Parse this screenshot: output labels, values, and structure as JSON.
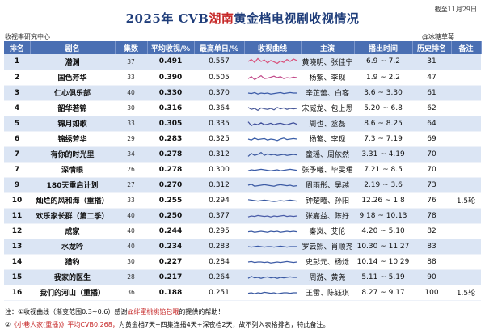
{
  "title": {
    "prefix": "2025年 CVB",
    "highlight": "湖南",
    "suffix": "黄金档电视剧收视情况"
  },
  "date_note": "截至11月29日",
  "source": "收视率研究中心",
  "author": "@冰糖草莓",
  "headers": [
    "排名",
    "剧名",
    "集数",
    "平均收视/%",
    "最高单日/%",
    "收视曲线",
    "主演",
    "播出时间",
    "历史排名",
    "备注"
  ],
  "rows": [
    {
      "rank": "1",
      "name": "潜渊",
      "episodes": "37",
      "avg": "0.491",
      "max": "0.557",
      "cast": "黄晓明、张佳宁",
      "time": "6.9 ~ 7.2",
      "hist": "31",
      "note": "",
      "curve": "curve-1"
    },
    {
      "rank": "2",
      "name": "国色芳华",
      "episodes": "33",
      "avg": "0.390",
      "max": "0.505",
      "cast": "杨紫、李现",
      "time": "1.9 ~ 2.2",
      "hist": "47",
      "note": "",
      "curve": "curve-2"
    },
    {
      "rank": "3",
      "name": "仁心俱乐部",
      "episodes": "40",
      "avg": "0.330",
      "max": "0.370",
      "cast": "辛芷蕾、白客",
      "time": "3.6 ~ 3.30",
      "hist": "61",
      "note": "",
      "curve": "curve-3"
    },
    {
      "rank": "4",
      "name": "韶华若锦",
      "episodes": "30",
      "avg": "0.316",
      "max": "0.364",
      "cast": "宋威龙、包上恩",
      "time": "5.20 ~ 6.8",
      "hist": "62",
      "note": "",
      "curve": "curve-4"
    },
    {
      "rank": "5",
      "name": "锦月如歌",
      "episodes": "33",
      "avg": "0.305",
      "max": "0.335",
      "cast": "周也、丞磊",
      "time": "8.6 ~ 8.25",
      "hist": "64",
      "note": "",
      "curve": "curve-5"
    },
    {
      "rank": "6",
      "name": "锦绣芳华",
      "episodes": "29",
      "avg": "0.283",
      "max": "0.325",
      "cast": "杨紫、李现",
      "time": "7.3 ~ 7.19",
      "hist": "69",
      "note": "",
      "curve": "curve-6"
    },
    {
      "rank": "7",
      "name": "有你的时光里",
      "episodes": "34",
      "avg": "0.278",
      "max": "0.312",
      "cast": "童瑶、周依然",
      "time": "3.31 ~ 4.19",
      "hist": "70",
      "note": "",
      "curve": "curve-7"
    },
    {
      "rank": "7",
      "name": "深情眼",
      "episodes": "26",
      "avg": "0.278",
      "max": "0.300",
      "cast": "张予曦、毕雯珺",
      "time": "7.21 ~ 8.5",
      "hist": "70",
      "note": "",
      "curve": "curve-8"
    },
    {
      "rank": "9",
      "name": "180天重启计划",
      "episodes": "27",
      "avg": "0.270",
      "max": "0.312",
      "cast": "周雨彤、吴越",
      "time": "2.19 ~ 3.6",
      "hist": "73",
      "note": "",
      "curve": "curve-9"
    },
    {
      "rank": "10",
      "name": "灿烂的风和海（重播）",
      "episodes": "33",
      "avg": "0.255",
      "max": "0.294",
      "cast": "钟楚曦、孙阳",
      "time": "12.26 ~ 1.8",
      "hist": "76",
      "note": "1.5轮",
      "curve": "curve-10"
    },
    {
      "rank": "11",
      "name": "欢乐家长群（第二季）",
      "episodes": "40",
      "avg": "0.250",
      "max": "0.377",
      "cast": "张嘉益、陈好",
      "time": "9.18 ~ 10.13",
      "hist": "78",
      "note": "",
      "curve": "curve-11"
    },
    {
      "rank": "12",
      "name": "成家",
      "episodes": "40",
      "avg": "0.244",
      "max": "0.295",
      "cast": "秦岚、艾伦",
      "time": "4.20 ~ 5.10",
      "hist": "82",
      "note": "",
      "curve": "curve-12"
    },
    {
      "rank": "13",
      "name": "水龙吟",
      "episodes": "40",
      "avg": "0.234",
      "max": "0.283",
      "cast": "罗云熙、肖顺尧",
      "time": "10.30 ~ 11.27",
      "hist": "83",
      "note": "",
      "curve": "curve-13"
    },
    {
      "rank": "14",
      "name": "猎豹",
      "episodes": "30",
      "avg": "0.227",
      "max": "0.284",
      "cast": "史彭元、杨烁",
      "time": "10.14 ~ 10.29",
      "hist": "88",
      "note": "",
      "curve": "curve-14"
    },
    {
      "rank": "15",
      "name": "我家的医生",
      "episodes": "28",
      "avg": "0.217",
      "max": "0.264",
      "cast": "周游、黄尧",
      "time": "5.11 ~ 5.19",
      "hist": "90",
      "note": "",
      "curve": "curve-15"
    },
    {
      "rank": "16",
      "name": "我们的河山（重播）",
      "episodes": "36",
      "avg": "0.188",
      "max": "0.251",
      "cast": "王雷、陈钰琪",
      "time": "8.27 ~ 9.17",
      "hist": "100",
      "note": "1.5轮",
      "curve": "curve-16"
    }
  ],
  "footnotes": {
    "note1_prefix": "注：①收视曲线（渐变范围0.3~0.6）感谢",
    "note1_red": "@绊蜜桃挑馅包哦",
    "note1_suffix": "的提供的帮助！",
    "note2_prefix": "②",
    "note2_red": "《小巷人家(重播)》平均CVB0.268，",
    "note2_suffix": "为黄金档7天+四集连播4天+深夜档2天，故不列入表格排名，特此备注。"
  },
  "colors": {
    "header": "#4a6fb3",
    "band": "#dbe5f4",
    "accent": "#c62828",
    "title": "#1f3d7a"
  }
}
